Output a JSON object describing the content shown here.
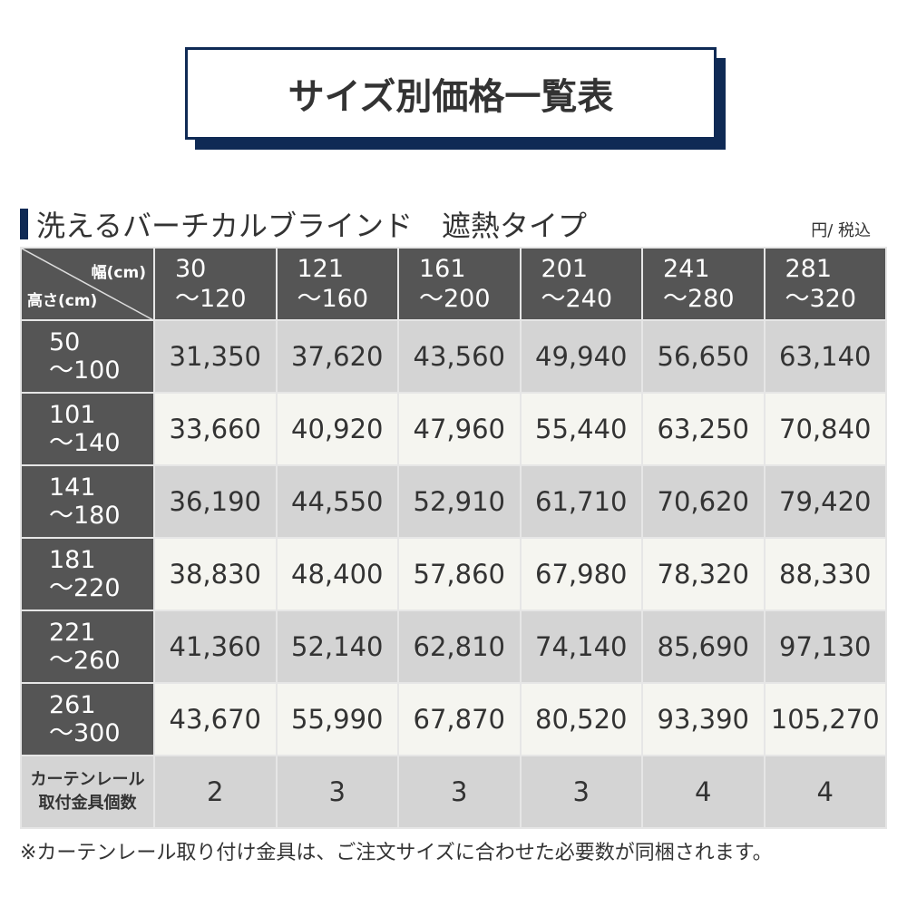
{
  "title": "サイズ別価格一覧表",
  "subtitle": "洗えるバーチカルブラインド　遮熱タイプ",
  "unit": "円/ 税込",
  "corner": {
    "width_label": "幅(cm)",
    "height_label": "高さ(cm)"
  },
  "columns": [
    [
      "30",
      "～120"
    ],
    [
      "121",
      "～160"
    ],
    [
      "161",
      "～200"
    ],
    [
      "201",
      "～240"
    ],
    [
      "241",
      "～280"
    ],
    [
      "281",
      "～320"
    ]
  ],
  "rows": [
    {
      "h": [
        "50",
        "～100"
      ],
      "prices": [
        "31,350",
        "37,620",
        "43,560",
        "49,940",
        "56,650",
        "63,140"
      ]
    },
    {
      "h": [
        "101",
        "～140"
      ],
      "prices": [
        "33,660",
        "40,920",
        "47,960",
        "55,440",
        "63,250",
        "70,840"
      ]
    },
    {
      "h": [
        "141",
        "～180"
      ],
      "prices": [
        "36,190",
        "44,550",
        "52,910",
        "61,710",
        "70,620",
        "79,420"
      ]
    },
    {
      "h": [
        "181",
        "～220"
      ],
      "prices": [
        "38,830",
        "48,400",
        "57,860",
        "67,980",
        "78,320",
        "88,330"
      ]
    },
    {
      "h": [
        "221",
        "～260"
      ],
      "prices": [
        "41,360",
        "52,140",
        "62,810",
        "74,140",
        "85,690",
        "97,130"
      ]
    },
    {
      "h": [
        "261",
        "～300"
      ],
      "prices": [
        "43,670",
        "55,990",
        "67,870",
        "80,520",
        "93,390",
        "105,270"
      ]
    }
  ],
  "brackets": {
    "label": [
      "カーテンレール",
      "取付金具個数"
    ],
    "counts": [
      "2",
      "3",
      "3",
      "3",
      "4",
      "4"
    ]
  },
  "note": "※カーテンレール取り付け金具は、ご注文サイズに合わせた必要数が同梱されます。",
  "colors": {
    "navy": "#0f2a55",
    "header": "#555555",
    "row_gray": "#d4d4d4",
    "row_cream": "#f5f5f0"
  }
}
